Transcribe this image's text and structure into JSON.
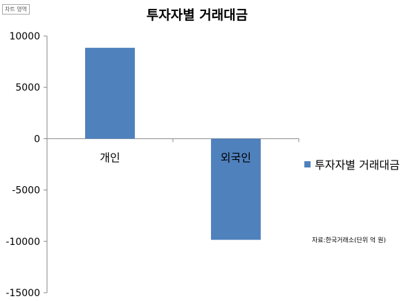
{
  "chart_area_tag": "차트 영역",
  "source_note": "자료:한국거래소(단위 억 원)",
  "colors": {
    "bar": "#4f81bd",
    "axis": "#868686"
  },
  "chart_data": {
    "type": "bar",
    "title": "투자자별 거래대금",
    "categories": [
      "개인",
      "외국인"
    ],
    "series": [
      {
        "name": "투자자별 거래대금",
        "values": [
          8850,
          -9850
        ]
      }
    ],
    "ylim": [
      -15000,
      10000
    ],
    "yticks": [
      10000,
      5000,
      0,
      -5000,
      -10000,
      -15000
    ],
    "ytick_labels": [
      "10000",
      "5000",
      "0",
      "-5000",
      "-10000",
      "-15000"
    ],
    "xlabel": "",
    "ylabel": "",
    "grid": false,
    "legend_position": "right"
  }
}
